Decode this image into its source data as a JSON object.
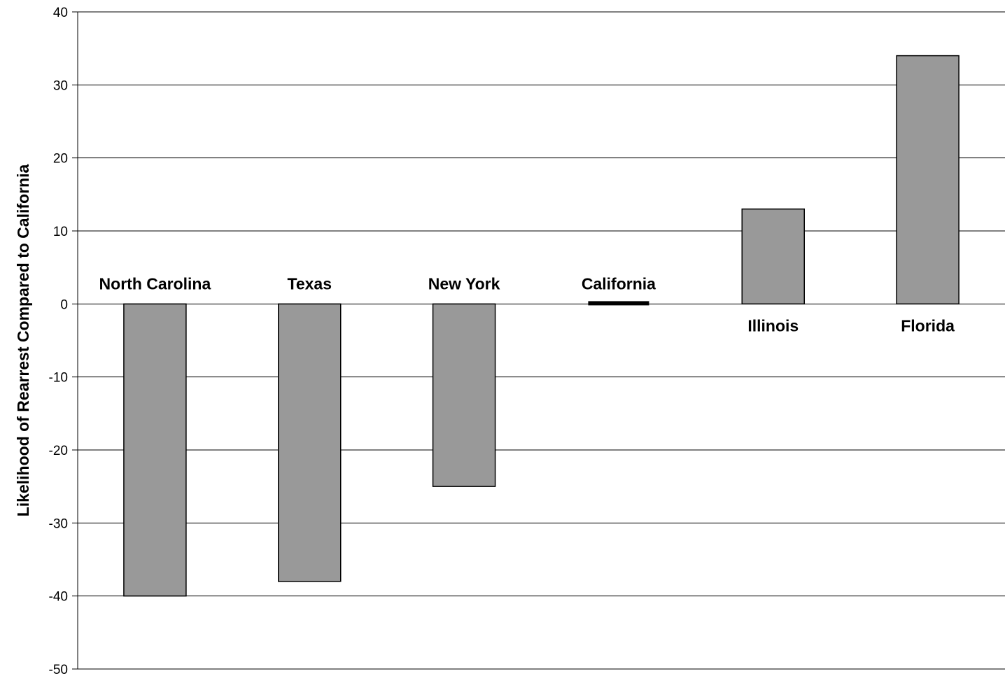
{
  "chart_data": {
    "type": "bar",
    "title": "",
    "xlabel": "",
    "ylabel": "Likelihood of Rearrest Compared to California",
    "categories": [
      "North Carolina",
      "Texas",
      "New York",
      "California",
      "Illinois",
      "Florida"
    ],
    "values": [
      -40,
      -38,
      -25,
      0,
      13,
      34
    ],
    "ylim": [
      -50,
      40
    ],
    "yticks": [
      40,
      30,
      20,
      10,
      0,
      -10,
      -20,
      -30,
      -40,
      -50
    ],
    "grid": true,
    "legend": "none",
    "bar_color": "#999999",
    "bar_outline": "#000000",
    "baseline_highlight_category": "California"
  }
}
